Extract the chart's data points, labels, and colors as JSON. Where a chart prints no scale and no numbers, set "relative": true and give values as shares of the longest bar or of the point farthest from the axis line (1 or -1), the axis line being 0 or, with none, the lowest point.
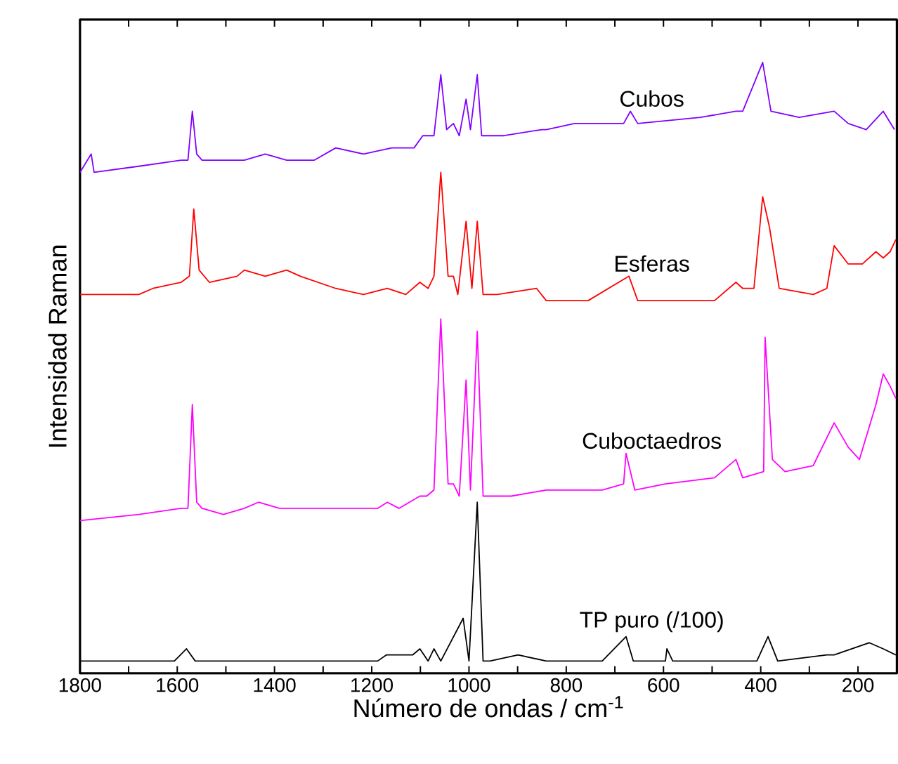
{
  "chart_data": {
    "type": "line",
    "relative": true,
    "marker": "none",
    "xlabel": "Número de ondas / cm$^{-1}$",
    "ylabel": "Intensidad Raman",
    "xlim": [
      1800,
      120
    ],
    "xticks": [
      1800,
      {
        "value": 1700,
        "label": null
      },
      1600,
      {
        "value": 1500,
        "label": null
      },
      1400,
      {
        "value": 1300,
        "label": null
      },
      1200,
      {
        "value": 1100,
        "label": null
      },
      1000,
      {
        "value": 900,
        "label": null
      },
      800,
      {
        "value": 700,
        "label": null
      },
      600,
      {
        "value": 500,
        "label": null
      },
      400,
      {
        "value": 300,
        "label": null
      },
      200
    ],
    "series": [
      {
        "name": "Cubos",
        "color": "#8000ff",
        "x": [
          1800,
          1777,
          1771,
          1679,
          1592,
          1578,
          1569,
          1560,
          1549,
          1462,
          1419,
          1375,
          1318,
          1274,
          1217,
          1159,
          1113,
          1095,
          1081,
          1072,
          1058,
          1046,
          1032,
          1020,
          1006,
          997,
          983,
          974,
          957,
          928,
          850,
          841,
          783,
          682,
          668,
          653,
          524,
          451,
          437,
          396,
          379,
          321,
          249,
          220,
          183,
          148,
          125
        ],
        "values": [
          0.82,
          0.85,
          0.82,
          0.83,
          0.84,
          0.84,
          0.92,
          0.85,
          0.84,
          0.84,
          0.85,
          0.84,
          0.84,
          0.86,
          0.85,
          0.86,
          0.86,
          0.88,
          0.88,
          0.88,
          0.98,
          0.89,
          0.9,
          0.88,
          0.94,
          0.89,
          0.98,
          0.88,
          0.88,
          0.88,
          0.89,
          0.89,
          0.9,
          0.9,
          0.92,
          0.9,
          0.91,
          0.92,
          0.92,
          1.0,
          0.92,
          0.91,
          0.92,
          0.9,
          0.89,
          0.92,
          0.89
        ]
      },
      {
        "name": "Esferas",
        "color": "#ff0000",
        "x": [
          1800,
          1679,
          1650,
          1592,
          1575,
          1566,
          1555,
          1534,
          1477,
          1462,
          1419,
          1375,
          1347,
          1274,
          1217,
          1168,
          1130,
          1101,
          1084,
          1072,
          1058,
          1043,
          1032,
          1023,
          1006,
          994,
          983,
          971,
          942,
          861,
          841,
          755,
          671,
          653,
          610,
          495,
          451,
          437,
          414,
          396,
          382,
          362,
          292,
          264,
          249,
          220,
          191,
          163,
          148,
          134,
          122
        ],
        "values": [
          0.62,
          0.62,
          0.63,
          0.64,
          0.65,
          0.76,
          0.66,
          0.64,
          0.65,
          0.66,
          0.65,
          0.66,
          0.65,
          0.63,
          0.62,
          0.63,
          0.62,
          0.64,
          0.63,
          0.65,
          0.82,
          0.65,
          0.65,
          0.62,
          0.74,
          0.63,
          0.74,
          0.62,
          0.62,
          0.63,
          0.61,
          0.61,
          0.65,
          0.61,
          0.61,
          0.61,
          0.64,
          0.63,
          0.63,
          0.78,
          0.73,
          0.63,
          0.62,
          0.63,
          0.7,
          0.67,
          0.67,
          0.69,
          0.68,
          0.69,
          0.71
        ]
      },
      {
        "name": "Cuboctaedros",
        "color": "#ff00ff",
        "x": [
          1800,
          1679,
          1592,
          1578,
          1569,
          1560,
          1549,
          1505,
          1462,
          1433,
          1390,
          1347,
          1303,
          1246,
          1188,
          1168,
          1144,
          1101,
          1087,
          1072,
          1058,
          1043,
          1032,
          1020,
          1006,
          997,
          983,
          971,
          942,
          913,
          841,
          783,
          726,
          682,
          677,
          659,
          596,
          495,
          451,
          437,
          394,
          391,
          376,
          350,
          292,
          249,
          220,
          197,
          163,
          148,
          134,
          122
        ],
        "values": [
          0.25,
          0.26,
          0.27,
          0.27,
          0.44,
          0.28,
          0.27,
          0.26,
          0.27,
          0.28,
          0.27,
          0.27,
          0.27,
          0.27,
          0.27,
          0.28,
          0.27,
          0.29,
          0.29,
          0.3,
          0.58,
          0.31,
          0.31,
          0.29,
          0.48,
          0.3,
          0.56,
          0.29,
          0.29,
          0.29,
          0.3,
          0.3,
          0.3,
          0.31,
          0.36,
          0.3,
          0.31,
          0.32,
          0.35,
          0.32,
          0.33,
          0.55,
          0.35,
          0.33,
          0.34,
          0.41,
          0.37,
          0.35,
          0.44,
          0.49,
          0.47,
          0.45
        ]
      },
      {
        "name": "TP puro (/100)",
        "color": "#000000",
        "x": [
          1800,
          1606,
          1581,
          1563,
          1390,
          1188,
          1170,
          1144,
          1116,
          1101,
          1084,
          1072,
          1058,
          1012,
          1000,
          983,
          971,
          957,
          899,
          841,
          726,
          677,
          662,
          596,
          593,
          581,
          408,
          385,
          365,
          264,
          249,
          177,
          148,
          122
        ],
        "values": [
          0.02,
          0.02,
          0.04,
          0.02,
          0.02,
          0.02,
          0.03,
          0.03,
          0.03,
          0.04,
          0.02,
          0.04,
          0.02,
          0.09,
          0.02,
          0.28,
          0.02,
          0.02,
          0.03,
          0.02,
          0.02,
          0.06,
          0.02,
          0.02,
          0.04,
          0.02,
          0.02,
          0.06,
          0.02,
          0.03,
          0.03,
          0.05,
          0.04,
          0.03
        ]
      }
    ]
  }
}
